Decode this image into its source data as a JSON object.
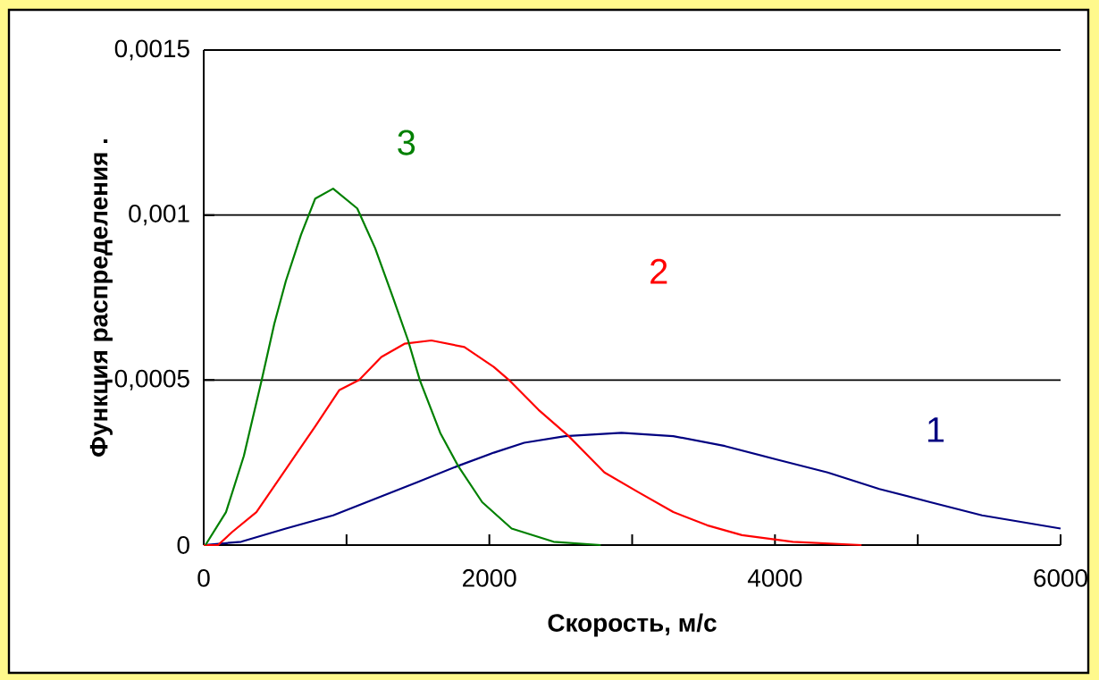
{
  "chart_data": {
    "type": "line",
    "xlabel": "Скорость, м/с",
    "ylabel": "Функция распределения   .",
    "xlim": [
      0,
      6000
    ],
    "ylim": [
      0,
      0.0015
    ],
    "xticks": [
      0,
      {
        "value": 1000,
        "label": null
      },
      2000,
      {
        "value": 3000,
        "label": null
      },
      4000,
      {
        "value": 5000,
        "label": null
      },
      6000
    ],
    "yticks": [
      0,
      {
        "value": 0.0005,
        "label": "0,0005"
      },
      {
        "value": 0.001,
        "label": "0,001"
      },
      {
        "value": 0.0015,
        "label": "0,0015"
      }
    ],
    "grid": "y",
    "marker": "none",
    "line_style": "solid",
    "series": [
      {
        "name": "1",
        "color": "#000080",
        "x": [
          0,
          262,
          575,
          906,
          1200,
          1494,
          1781,
          2031,
          2244,
          2531,
          2925,
          3288,
          3650,
          4006,
          4369,
          4731,
          5088,
          5450,
          6000
        ],
        "values": [
          0,
          1e-05,
          5e-05,
          9e-05,
          0.00014,
          0.00019,
          0.00024,
          0.00028,
          0.00031,
          0.00033,
          0.00034,
          0.00033,
          0.0003,
          0.00026,
          0.00022,
          0.00017,
          0.00013,
          9e-05,
          5e-05
        ]
      },
      {
        "name": "2",
        "color": "#ff0000",
        "x": [
          0,
          100,
          200,
          369,
          575,
          781,
          950,
          1088,
          1244,
          1406,
          1594,
          1825,
          2031,
          2138,
          2344,
          2556,
          2806,
          3044,
          3288,
          3525,
          3769,
          4125,
          4606
        ],
        "values": [
          0,
          0,
          4e-05,
          0.0001,
          0.00023,
          0.00036,
          0.00047,
          0.0005,
          0.00057,
          0.00061,
          0.00062,
          0.0006,
          0.00054,
          0.0005,
          0.00041,
          0.00033,
          0.00022,
          0.00016,
          0.0001,
          6e-05,
          3e-05,
          1e-05,
          0
        ]
      },
      {
        "name": "3",
        "color": "#008000",
        "x": [
          12,
          156,
          281,
          406,
          494,
          575,
          681,
          781,
          906,
          1075,
          1200,
          1325,
          1431,
          1513,
          1656,
          1781,
          1950,
          2156,
          2450,
          2780
        ],
        "values": [
          0,
          0.0001,
          0.00027,
          0.0005,
          0.00067,
          0.0008,
          0.00094,
          0.00105,
          0.00108,
          0.00102,
          0.0009,
          0.00075,
          0.00062,
          0.0005,
          0.00034,
          0.00024,
          0.00013,
          5e-05,
          1e-05,
          0
        ]
      }
    ]
  }
}
